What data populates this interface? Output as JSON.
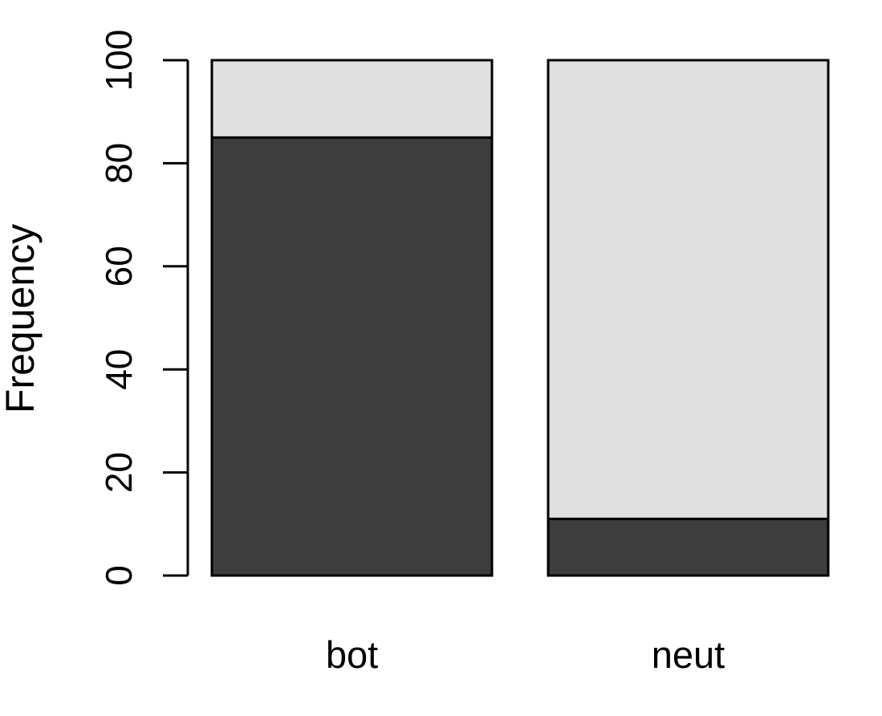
{
  "chart_data": {
    "type": "bar",
    "stacked": true,
    "categories": [
      "bot",
      "neut"
    ],
    "series": [
      {
        "values": [
          85,
          11
        ],
        "color": "#3d3d3d"
      },
      {
        "values": [
          15,
          89
        ],
        "color": "#e0e0e0"
      }
    ],
    "xlabel": "",
    "ylabel": "Frequency",
    "ylim": [
      0,
      100
    ],
    "yticks": [
      0,
      20,
      40,
      60,
      80,
      100
    ],
    "grid": false,
    "legend": "none"
  }
}
